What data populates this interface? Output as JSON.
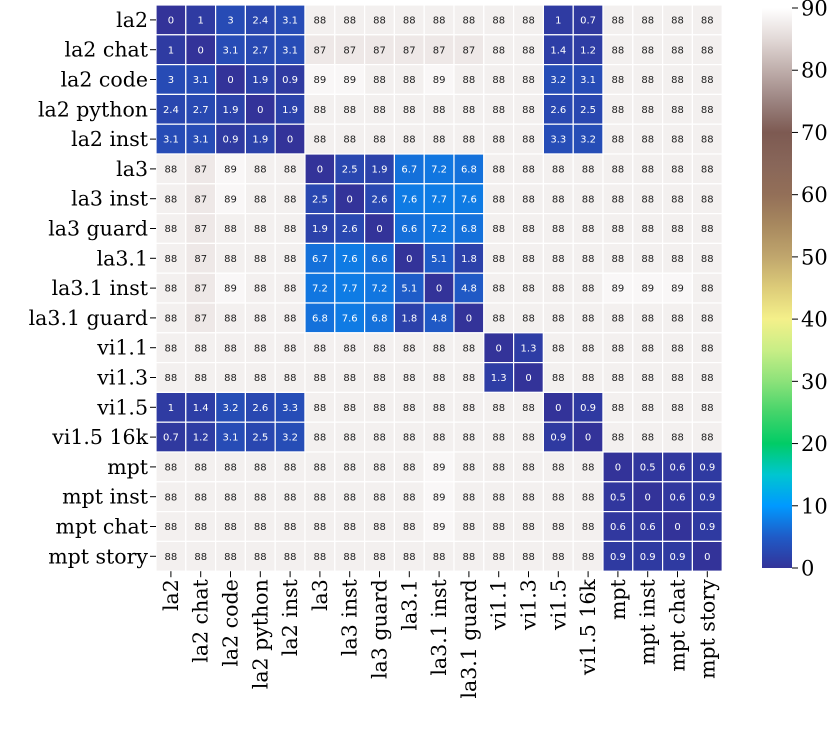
{
  "chart_data": {
    "type": "heatmap",
    "title": "",
    "xlabel": "",
    "ylabel": "",
    "row_labels": [
      "la2",
      "la2 chat",
      "la2 code",
      "la2 python",
      "la2 inst",
      "la3",
      "la3 inst",
      "la3 guard",
      "la3.1",
      "la3.1 inst",
      "la3.1 guard",
      "vi1.1",
      "vi1.3",
      "vi1.5",
      "vi1.5 16k",
      "mpt",
      "mpt inst",
      "mpt chat",
      "mpt story"
    ],
    "col_labels": [
      "la2",
      "la2 chat",
      "la2 code",
      "la2 python",
      "la2 inst",
      "la3",
      "la3 inst",
      "la3 guard",
      "la3.1",
      "la3.1 inst",
      "la3.1 guard",
      "vi1.1",
      "vi1.3",
      "vi1.5",
      "vi1.5 16k",
      "mpt",
      "mpt inst",
      "mpt chat",
      "mpt story"
    ],
    "values": [
      [
        0,
        1,
        3,
        2.4,
        3.1,
        88,
        88,
        88,
        88,
        88,
        88,
        88,
        88,
        1,
        0.7,
        88,
        88,
        88,
        88
      ],
      [
        1,
        0,
        3.1,
        2.7,
        3.1,
        87,
        87,
        87,
        87,
        87,
        87,
        88,
        88,
        1.4,
        1.2,
        88,
        88,
        88,
        88
      ],
      [
        3,
        3.1,
        0,
        1.9,
        0.9,
        89,
        89,
        88,
        88,
        89,
        88,
        88,
        88,
        3.2,
        3.1,
        88,
        88,
        88,
        88
      ],
      [
        2.4,
        2.7,
        1.9,
        0,
        1.9,
        88,
        88,
        88,
        88,
        88,
        88,
        88,
        88,
        2.6,
        2.5,
        88,
        88,
        88,
        88
      ],
      [
        3.1,
        3.1,
        0.9,
        1.9,
        0,
        88,
        88,
        88,
        88,
        88,
        88,
        88,
        88,
        3.3,
        3.2,
        88,
        88,
        88,
        88
      ],
      [
        88,
        87,
        89,
        88,
        88,
        0,
        2.5,
        1.9,
        6.7,
        7.2,
        6.8,
        88,
        88,
        88,
        88,
        88,
        88,
        88,
        88
      ],
      [
        88,
        87,
        89,
        88,
        88,
        2.5,
        0,
        2.6,
        7.6,
        7.7,
        7.6,
        88,
        88,
        88,
        88,
        88,
        88,
        88,
        88
      ],
      [
        88,
        87,
        88,
        88,
        88,
        1.9,
        2.6,
        0,
        6.6,
        7.2,
        6.8,
        88,
        88,
        88,
        88,
        88,
        88,
        88,
        88
      ],
      [
        88,
        87,
        88,
        88,
        88,
        6.7,
        7.6,
        6.6,
        0,
        5.1,
        1.8,
        88,
        88,
        88,
        88,
        88,
        88,
        88,
        88
      ],
      [
        88,
        87,
        89,
        88,
        88,
        7.2,
        7.7,
        7.2,
        5.1,
        0,
        4.8,
        88,
        88,
        88,
        88,
        89,
        89,
        89,
        88
      ],
      [
        88,
        87,
        88,
        88,
        88,
        6.8,
        7.6,
        6.8,
        1.8,
        4.8,
        0,
        88,
        88,
        88,
        88,
        88,
        88,
        88,
        88
      ],
      [
        88,
        88,
        88,
        88,
        88,
        88,
        88,
        88,
        88,
        88,
        88,
        0,
        1.3,
        88,
        88,
        88,
        88,
        88,
        88
      ],
      [
        88,
        88,
        88,
        88,
        88,
        88,
        88,
        88,
        88,
        88,
        88,
        1.3,
        0,
        88,
        88,
        88,
        88,
        88,
        88
      ],
      [
        1,
        1.4,
        3.2,
        2.6,
        3.3,
        88,
        88,
        88,
        88,
        88,
        88,
        88,
        88,
        0,
        0.9,
        88,
        88,
        88,
        88
      ],
      [
        0.7,
        1.2,
        3.1,
        2.5,
        3.2,
        88,
        88,
        88,
        88,
        88,
        88,
        88,
        88,
        0.9,
        0,
        88,
        88,
        88,
        88
      ],
      [
        88,
        88,
        88,
        88,
        88,
        88,
        88,
        88,
        88,
        89,
        88,
        88,
        88,
        88,
        88,
        0,
        0.5,
        0.6,
        0.9
      ],
      [
        88,
        88,
        88,
        88,
        88,
        88,
        88,
        88,
        88,
        89,
        88,
        88,
        88,
        88,
        88,
        0.5,
        0,
        0.6,
        0.9
      ],
      [
        88,
        88,
        88,
        88,
        88,
        88,
        88,
        88,
        88,
        89,
        88,
        88,
        88,
        88,
        88,
        0.6,
        0.6,
        0,
        0.9
      ],
      [
        88,
        88,
        88,
        88,
        88,
        88,
        88,
        88,
        88,
        88,
        88,
        88,
        88,
        88,
        88,
        0.9,
        0.9,
        0.9,
        0
      ]
    ],
    "colorbar": {
      "min": 0,
      "max": 90,
      "ticks": [
        0,
        10,
        20,
        30,
        40,
        50,
        60,
        70,
        80,
        90
      ],
      "colormap": "terrain",
      "stops": [
        {
          "v": 0,
          "color": "#333399"
        },
        {
          "v": 5,
          "color": "#1f5bc7"
        },
        {
          "v": 10,
          "color": "#0099ff"
        },
        {
          "v": 15,
          "color": "#00c6d0"
        },
        {
          "v": 20,
          "color": "#01cc66"
        },
        {
          "v": 25,
          "color": "#44d46a"
        },
        {
          "v": 30,
          "color": "#8ce27a"
        },
        {
          "v": 35,
          "color": "#c8ee86"
        },
        {
          "v": 40,
          "color": "#f4f08a"
        },
        {
          "v": 45,
          "color": "#ddcc79"
        },
        {
          "v": 50,
          "color": "#c0a66d"
        },
        {
          "v": 55,
          "color": "#a8895f"
        },
        {
          "v": 60,
          "color": "#936f58"
        },
        {
          "v": 65,
          "color": "#886659"
        },
        {
          "v": 70,
          "color": "#7d5a52"
        },
        {
          "v": 75,
          "color": "#9b8380"
        },
        {
          "v": 80,
          "color": "#bfaeab"
        },
        {
          "v": 85,
          "color": "#e2d9d7"
        },
        {
          "v": 90,
          "color": "#ffffff"
        }
      ]
    }
  }
}
